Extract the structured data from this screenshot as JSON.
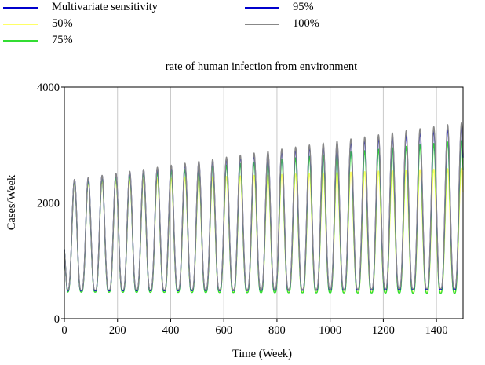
{
  "chart_data": {
    "type": "line",
    "title": "rate of human infection from environment",
    "xlabel": "Time (Week)",
    "ylabel": "Cases/Week",
    "xlim": [
      0,
      1500
    ],
    "ylim": [
      0,
      4000
    ],
    "x_ticks": [
      0,
      200,
      400,
      600,
      800,
      1000,
      1200,
      1400
    ],
    "y_ticks": [
      0,
      2000,
      4000
    ],
    "x_tick_labels": [
      "0",
      "200",
      "400",
      "600",
      "800",
      "1000",
      "1200",
      "1400"
    ],
    "y_tick_labels": [
      "0",
      "2000",
      "4000"
    ],
    "grid": true,
    "legend_position": "top",
    "legend_title": "Multivariate sensitivity",
    "oscillation_period_weeks": 52,
    "series": [
      {
        "name": "50%",
        "color": "#ffff66",
        "peak_start": 2360,
        "peak_end": 2600,
        "trough_start": 470,
        "trough_end": 460
      },
      {
        "name": "75%",
        "color": "#33dd33",
        "peak_start": 2360,
        "peak_end": 3080,
        "trough_start": 460,
        "trough_end": 440
      },
      {
        "name": "95%",
        "color": "#0000cc",
        "peak_start": 2380,
        "peak_end": 3330,
        "trough_start": 480,
        "trough_end": 500
      },
      {
        "name": "100%",
        "color": "#888888",
        "peak_start": 2380,
        "peak_end": 3390,
        "trough_start": 490,
        "trough_end": 520
      }
    ],
    "legend_order": [
      "50%",
      "75%",
      "95%",
      "100%"
    ]
  }
}
